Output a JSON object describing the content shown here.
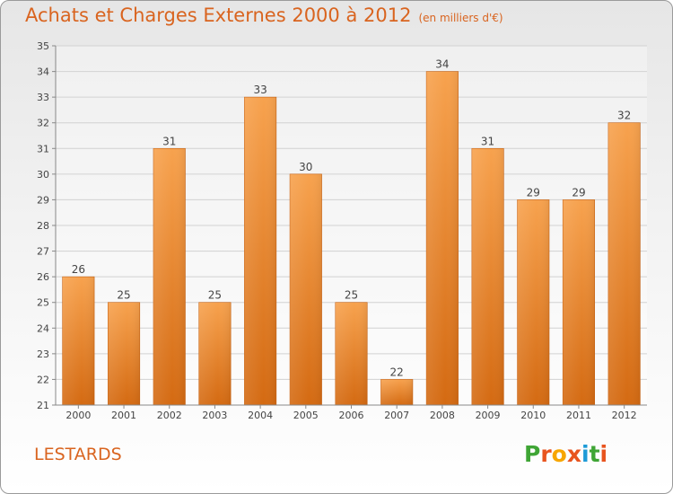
{
  "chart_data": {
    "type": "bar",
    "title": "Achats et Charges Externes 2000 à 2012",
    "unit_label": "(en milliers d'€)",
    "categories": [
      "2000",
      "2001",
      "2002",
      "2003",
      "2004",
      "2005",
      "2006",
      "2007",
      "2008",
      "2009",
      "2010",
      "2011",
      "2012"
    ],
    "values": [
      26,
      25,
      31,
      25,
      33,
      30,
      25,
      22,
      34,
      31,
      29,
      29,
      32
    ],
    "ylim": [
      21,
      35
    ],
    "yticks": [
      21,
      22,
      23,
      24,
      25,
      26,
      27,
      28,
      29,
      30,
      31,
      32,
      33,
      34,
      35
    ],
    "xlabel": "",
    "ylabel": "",
    "bar_color": "#f08a2e",
    "grid": true
  },
  "location": "LESTARDS",
  "logo": {
    "letters": [
      "P",
      "r",
      "o",
      "x",
      "i",
      "t",
      "i"
    ],
    "colors": [
      "#3fa535",
      "#e8541e",
      "#f7a600",
      "#e8541e",
      "#1d9bd7",
      "#3fa535",
      "#e8541e"
    ]
  }
}
